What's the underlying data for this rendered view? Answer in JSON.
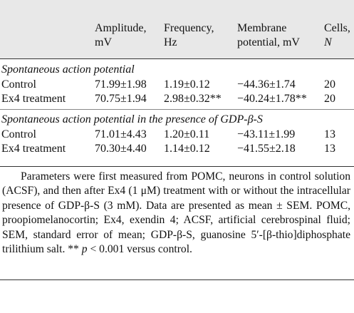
{
  "table": {
    "header": [
      [
        "Amplitude,",
        "mV"
      ],
      [
        "Frequency,",
        "Hz"
      ],
      [
        "Membrane",
        "potential, mV"
      ],
      [
        "Cells,",
        "N"
      ]
    ],
    "sections": [
      {
        "title": "Spontaneous action potential",
        "rows": [
          [
            "Control",
            "71.99±1.98",
            "1.19±0.12",
            "−44.36±1.74",
            "20"
          ],
          [
            "Ex4 treatment",
            "70.75±1.94",
            "2.98±0.32**",
            "−40.24±1.78**",
            "20"
          ]
        ]
      },
      {
        "title": "Spontaneous action potential in the presence of GDP-β-S",
        "rows": [
          [
            "Control",
            "71.01±4.43",
            "1.20±0.11",
            "−43.11±1.99",
            "13"
          ],
          [
            "Ex4 treatment",
            "70.30±4.40",
            "1.14±0.12",
            "−41.55±2.18",
            "13"
          ]
        ]
      }
    ]
  },
  "footnote": [
    "Parameters were first measured from POMC, neurons in control solution (ACSF), and then after Ex4 (1 μM) treatment with or without the intracellular presence of GDP-β-S (3 mM). Data are presented as mean ± SEM. POMC, proopiomelanocortin; Ex4, exendin 4; ACSF, artificial cerebrospinal fluid; SEM, standard error of mean; GDP-β-S, guanosine 5′-[β-thio]diphosphate trilithium salt. ** ",
    "p",
    " < 0.001 versus control."
  ]
}
